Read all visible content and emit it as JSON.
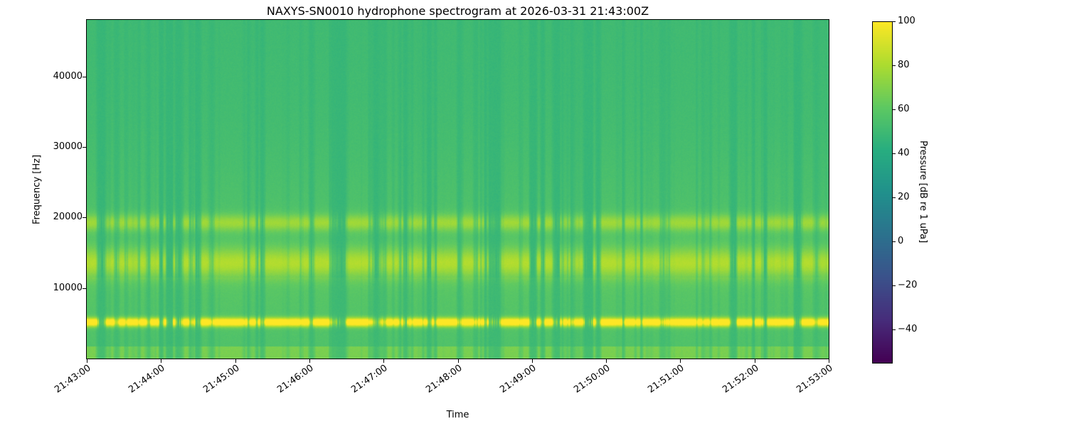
{
  "title": "NAXYS-SN0010 hydrophone spectrogram at 2026-03-31 21:43:00Z",
  "axes": {
    "xlabel": "Time",
    "ylabel": "Frequency [Hz]"
  },
  "colorbar": {
    "label": "Pressure [dB re 1 uPa]"
  },
  "chart_data": {
    "type": "heatmap",
    "title": "NAXYS-SN0010 hydrophone spectrogram at 2026-03-31 21:43:00Z",
    "xlabel": "Time",
    "ylabel": "Frequency [Hz]",
    "x_tick_labels": [
      "21:43:00",
      "21:44:00",
      "21:45:00",
      "21:46:00",
      "21:47:00",
      "21:48:00",
      "21:49:00",
      "21:50:00",
      "21:51:00",
      "21:52:00",
      "21:53:00"
    ],
    "y_tick_values_hz": [
      10000,
      20000,
      30000,
      40000
    ],
    "y_range_hz": [
      0,
      48000
    ],
    "colormap": "viridis",
    "colorbar_label": "Pressure [dB re 1 uPa]",
    "colorbar_tick_values_db": [
      100,
      80,
      60,
      40,
      20,
      0,
      -20,
      -40
    ],
    "value_range_db": [
      -55,
      100
    ],
    "background_level_db": 48,
    "features": [
      {
        "name": "tonal-band-5khz",
        "freq_hz": [
          4300,
          6200
        ],
        "peak_db": 100,
        "description": "bright intermittent yellow bursts forming a dashed horizontal line near 5 kHz"
      },
      {
        "name": "band-12-16khz",
        "freq_hz": [
          11500,
          16000
        ],
        "peak_db": 80,
        "description": "dense yellow-green vertical streak band centered near 13.5 kHz"
      },
      {
        "name": "band-19-20khz",
        "freq_hz": [
          18500,
          20500
        ],
        "peak_db": 72,
        "description": "moderate dashed streaks near 19.5 kHz"
      },
      {
        "name": "low-freq-band",
        "freq_hz": [
          0,
          1800
        ],
        "peak_db": 62,
        "description": "slightly brighter baseline band at the bottom of the plot"
      },
      {
        "name": "sub-11p5khz-haze",
        "freq_hz": [
          0,
          11500
        ],
        "peak_db": 52,
        "description": "slightly elevated background below ~11.5 kHz"
      },
      {
        "name": "broadband-transients",
        "freq_hz": [
          0,
          48000
        ],
        "peak_db": 60,
        "description": "faint full-height vertical lines at transient event times, repeating through the 10-minute window"
      }
    ]
  }
}
